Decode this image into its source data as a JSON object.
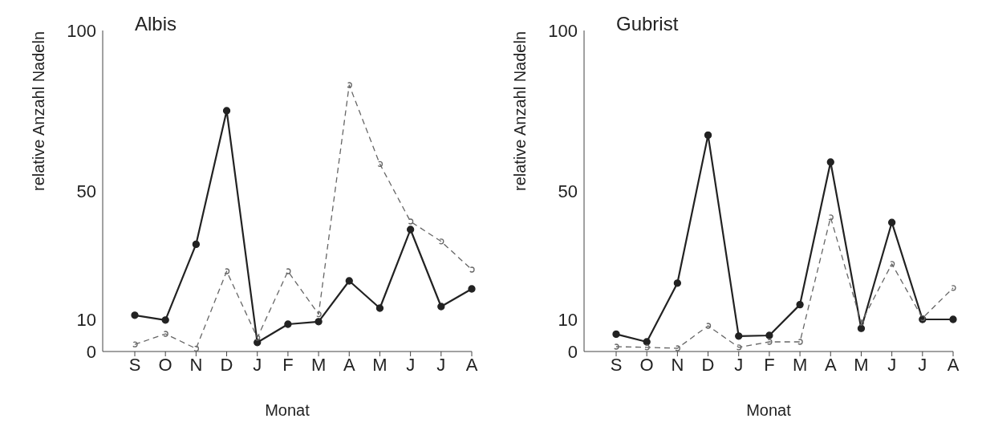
{
  "chart_data": [
    {
      "type": "line",
      "title": "Albis",
      "xlabel": "Monat",
      "ylabel": "relative Anzahl Nadeln",
      "categories": [
        "S",
        "O",
        "N",
        "D",
        "J",
        "F",
        "M",
        "A",
        "M",
        "J",
        "J",
        "A"
      ],
      "series": [
        {
          "color": "#222222",
          "line_style": "solid",
          "values": [
            11.3,
            9.8,
            33.4,
            75,
            2.8,
            8.5,
            9.3,
            22,
            13.5,
            38,
            14,
            19.5
          ]
        },
        {
          "color": "#666666",
          "line_style": "dashed",
          "values": [
            2.2,
            5.5,
            0.9,
            25,
            4.3,
            25,
            11.6,
            83,
            58.4,
            40.5,
            34.3,
            25.5
          ]
        }
      ],
      "ylim": [
        0,
        100
      ],
      "yticks": [
        0,
        10,
        50,
        100
      ],
      "marker": "circle",
      "grid": false,
      "legend": false
    },
    {
      "type": "line",
      "title": "Gubrist",
      "xlabel": "Monat",
      "ylabel": "relative Anzahl Nadeln",
      "categories": [
        "S",
        "O",
        "N",
        "D",
        "J",
        "F",
        "M",
        "A",
        "M",
        "J",
        "J",
        "A"
      ],
      "series": [
        {
          "color": "#222222",
          "line_style": "solid",
          "values": [
            5.4,
            3,
            21.3,
            67.4,
            4.8,
            5,
            14.6,
            59,
            7.2,
            40.2,
            10,
            10
          ]
        },
        {
          "color": "#666666",
          "line_style": "dashed",
          "values": [
            1.5,
            1.3,
            1,
            8,
            1.3,
            3,
            3,
            41.8,
            9,
            27.3,
            10.4,
            19.8
          ]
        }
      ],
      "ylim": [
        0,
        100
      ],
      "yticks": [
        0,
        10,
        50,
        100
      ],
      "marker": "circle",
      "grid": false,
      "legend": false
    }
  ]
}
